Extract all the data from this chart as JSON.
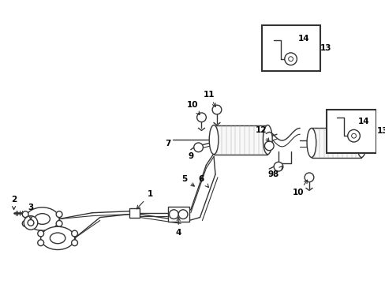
{
  "bg_color": "#ffffff",
  "lc": "#333333",
  "lw": 1.0,
  "fig_w": 4.89,
  "fig_h": 3.6,
  "dpi": 100
}
